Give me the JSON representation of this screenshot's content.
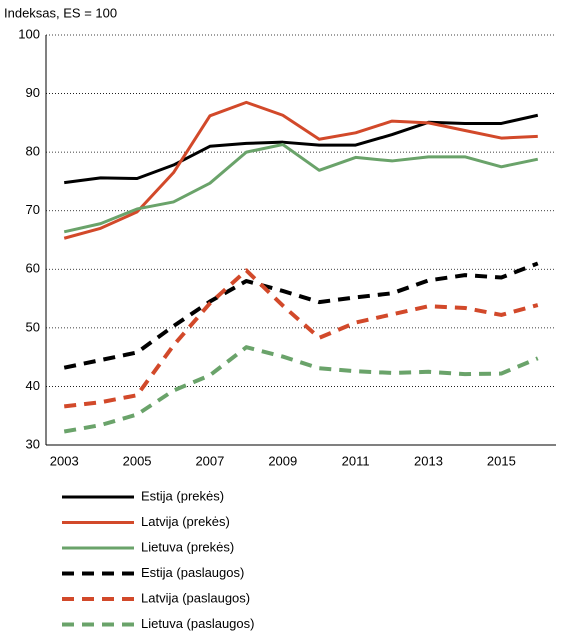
{
  "chart_data": {
    "type": "line",
    "y_label": "Indeksas, ES = 100",
    "categories": [
      "2003",
      null,
      "2005",
      null,
      "2007",
      null,
      "2009",
      null,
      "2011",
      null,
      "2013",
      null,
      "2015",
      null
    ],
    "ylim": [
      30,
      100
    ],
    "yticks": [
      30,
      40,
      50,
      60,
      70,
      80,
      90,
      100
    ],
    "grid": true,
    "series": [
      {
        "name": "Estija (prekės)",
        "color": "#000000",
        "dashed": false,
        "values": [
          74.8,
          75.6,
          75.5,
          77.8,
          81,
          81.5,
          81.7,
          81.2,
          81.2,
          83,
          85.1,
          84.9,
          84.9,
          86.3
        ]
      },
      {
        "name": "Latvija (prekės)",
        "color": "#d2492a",
        "dashed": false,
        "values": [
          65.3,
          67,
          69.8,
          76.5,
          86.2,
          88.5,
          86.3,
          82.2,
          83.3,
          85.3,
          85,
          83.7,
          82.4,
          82.7
        ]
      },
      {
        "name": "Lietuva (prekės)",
        "color": "#6aa36a",
        "dashed": false,
        "values": [
          66.4,
          67.8,
          70.3,
          71.5,
          74.7,
          80,
          81.3,
          76.9,
          79.1,
          78.5,
          79.2,
          79.2,
          77.5,
          78.8
        ]
      },
      {
        "name": "Estija (paslaugos)",
        "color": "#000000",
        "dashed": true,
        "values": [
          43.2,
          44.5,
          45.8,
          50.3,
          54.5,
          58,
          56.3,
          54.4,
          55.2,
          55.9,
          58.1,
          59,
          58.6,
          61
        ]
      },
      {
        "name": "Latvija (paslaugos)",
        "color": "#d2492a",
        "dashed": true,
        "values": [
          36.6,
          37.3,
          38.5,
          47,
          54.2,
          59.8,
          53.8,
          48.3,
          50.9,
          52.3,
          53.7,
          53.4,
          52.2,
          53.9
        ]
      },
      {
        "name": "Lietuva (paslaugos)",
        "color": "#6aa36a",
        "dashed": true,
        "values": [
          32.3,
          33.4,
          35.2,
          39.3,
          41.9,
          46.7,
          45.1,
          43.1,
          42.6,
          42.3,
          42.5,
          42.1,
          42.2,
          44.8
        ]
      }
    ]
  }
}
